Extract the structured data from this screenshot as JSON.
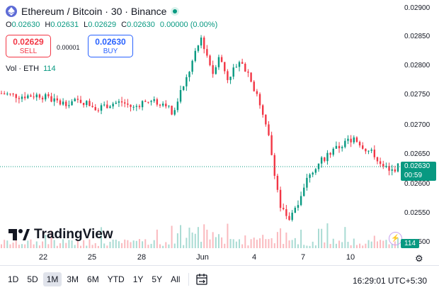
{
  "header": {
    "title": "Ethereum / Bitcoin · 30 · Binance"
  },
  "ohlc": {
    "o_label": "O",
    "o": "0.02630",
    "h_label": "H",
    "h": "0.02631",
    "l_label": "L",
    "l": "0.02629",
    "c_label": "C",
    "c": "0.02630",
    "change": "0.00000 (0.00%)"
  },
  "trade": {
    "sell_price": "0.02629",
    "sell_label": "SELL",
    "spread": "0.00001",
    "buy_price": "0.02630",
    "buy_label": "BUY"
  },
  "volume": {
    "label": "Vol · ETH",
    "value": "114"
  },
  "price_axis": {
    "ticks": [
      "0.02900",
      "0.02850",
      "0.02800",
      "0.02750",
      "0.02700",
      "0.02650",
      "0.02600",
      "0.02550",
      "0.02500"
    ],
    "current_price": "0.02630",
    "countdown": "00:59",
    "volume_badge": "114"
  },
  "time_axis": {
    "ticks": [
      "22",
      "25",
      "28",
      "Jun",
      "4",
      "7",
      "10"
    ]
  },
  "logo": {
    "text": "TradingView"
  },
  "toolbar": {
    "ranges": [
      "1D",
      "5D",
      "1M",
      "3M",
      "6M",
      "YTD",
      "1Y",
      "5Y",
      "All"
    ],
    "active": "1M",
    "clock": "16:29:01 UTC+5:30"
  },
  "colors": {
    "up": "#089981",
    "down": "#f23645",
    "sell": "#f23645",
    "buy": "#2962ff",
    "eth": "#5d6bd6"
  },
  "chart_data": {
    "type": "candlestick",
    "title": "Ethereum / Bitcoin · 30 · Binance",
    "ylim": [
      0.025,
      0.029
    ],
    "x_ticks": [
      "22",
      "25",
      "28",
      "Jun",
      "4",
      "7",
      "10"
    ],
    "trend_x": [
      0,
      6,
      13,
      20,
      27,
      33,
      38,
      41,
      45,
      48,
      52,
      56,
      58,
      63,
      68,
      72,
      74,
      77,
      81,
      84,
      87,
      91,
      95,
      98,
      101,
      105,
      111,
      120,
      124,
      127,
      132,
      135
    ],
    "trend_y": [
      0.02755,
      0.0275,
      0.02752,
      0.02738,
      0.02742,
      0.0273,
      0.02738,
      0.0274,
      0.0273,
      0.0274,
      0.0274,
      0.02738,
      0.0272,
      0.0278,
      0.0285,
      0.0279,
      0.0282,
      0.0278,
      0.0281,
      0.0279,
      0.0275,
      0.0268,
      0.0256,
      0.0254,
      0.0257,
      0.0262,
      0.0265,
      0.0268,
      0.0266,
      0.0265,
      0.0262,
      0.0263
    ]
  }
}
